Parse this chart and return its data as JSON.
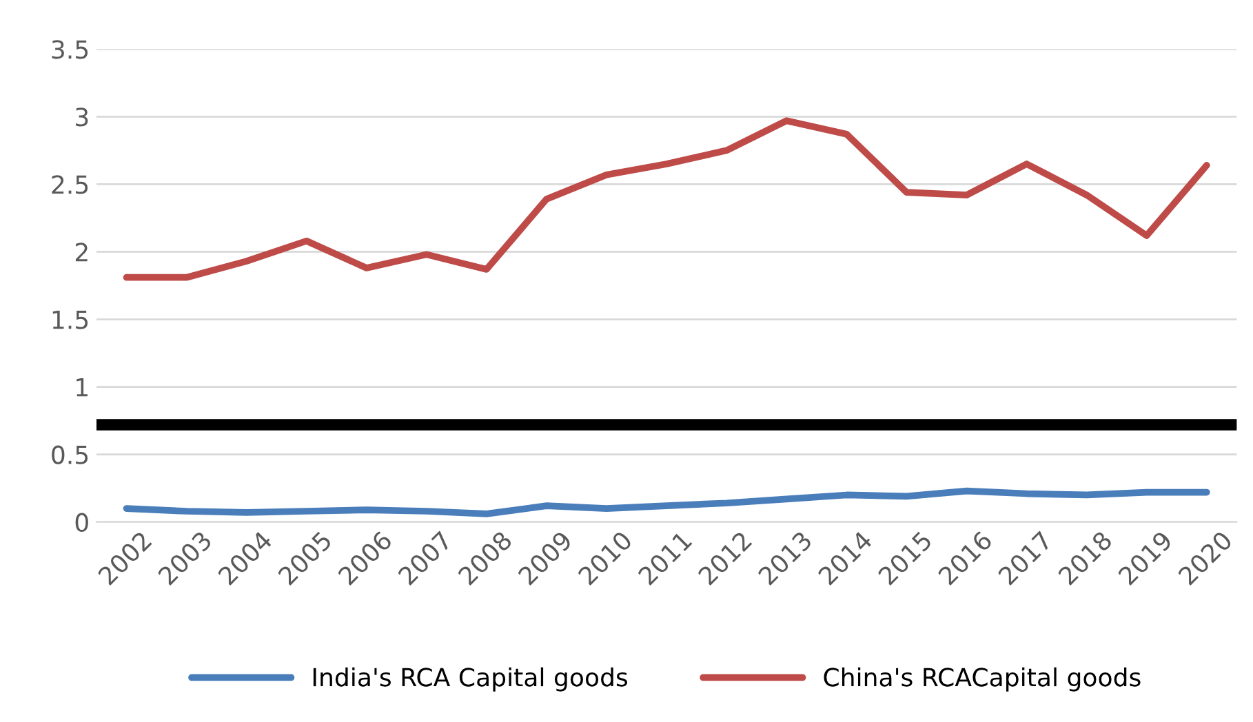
{
  "chart_data": {
    "type": "line",
    "categories": [
      "2002",
      "2003",
      "2004",
      "2005",
      "2006",
      "2007",
      "2008",
      "2009",
      "2010",
      "2011",
      "2012",
      "2013",
      "2014",
      "2015",
      "2016",
      "2017",
      "2018",
      "2019",
      "2020"
    ],
    "series": [
      {
        "name": "India's RCA Capital goods",
        "color": "#4a7ebb",
        "values": [
          0.1,
          0.08,
          0.07,
          0.08,
          0.09,
          0.08,
          0.06,
          0.12,
          0.1,
          0.12,
          0.14,
          0.17,
          0.2,
          0.19,
          0.23,
          0.21,
          0.2,
          0.22,
          0.22
        ]
      },
      {
        "name": "China's RCACapital goods",
        "color": "#be4b48",
        "values": [
          1.81,
          1.81,
          1.93,
          2.08,
          1.88,
          1.98,
          1.87,
          2.39,
          2.57,
          2.65,
          2.75,
          2.97,
          2.87,
          2.44,
          2.42,
          2.65,
          2.42,
          2.12,
          2.64
        ]
      }
    ],
    "ylim": [
      0,
      3.5
    ],
    "yticks": [
      0,
      0.5,
      1,
      1.5,
      2,
      2.5,
      3,
      3.5
    ],
    "ref_lines": [
      {
        "axis": "y",
        "value": 0.72,
        "color": "#000000",
        "line_style": "solid"
      }
    ],
    "grid": "y",
    "legend": "bottom",
    "marker": "none",
    "line_style": "solid"
  }
}
